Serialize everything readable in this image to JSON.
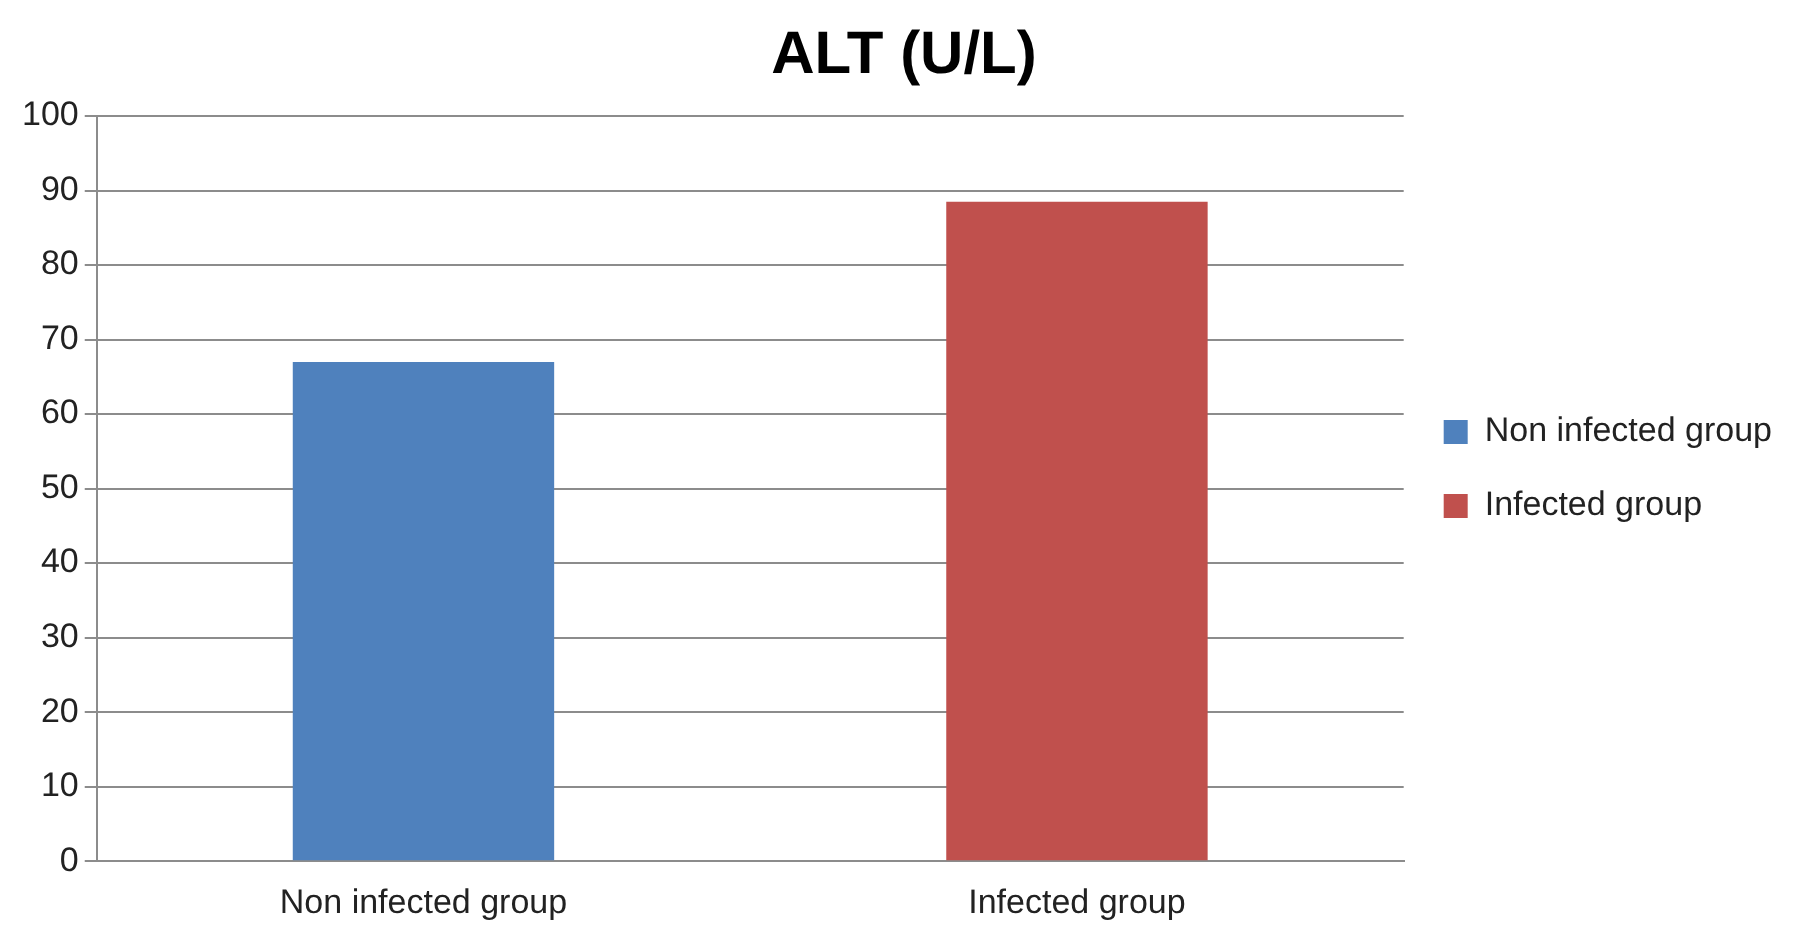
{
  "chart_data": {
    "type": "bar",
    "title": "ALT (U/L)",
    "categories": [
      "Non infected group",
      "Infected group"
    ],
    "series": [
      {
        "name": "Non infected group",
        "color": "#4f81bd",
        "values": [
          67,
          null
        ]
      },
      {
        "name": "Infected group",
        "color": "#c0504d",
        "values": [
          null,
          88.5
        ]
      }
    ],
    "ylim": [
      0,
      100
    ],
    "yticks": [
      0,
      10,
      20,
      30,
      40,
      50,
      60,
      70,
      80,
      90,
      100
    ],
    "grid": "y",
    "legend": "right"
  }
}
